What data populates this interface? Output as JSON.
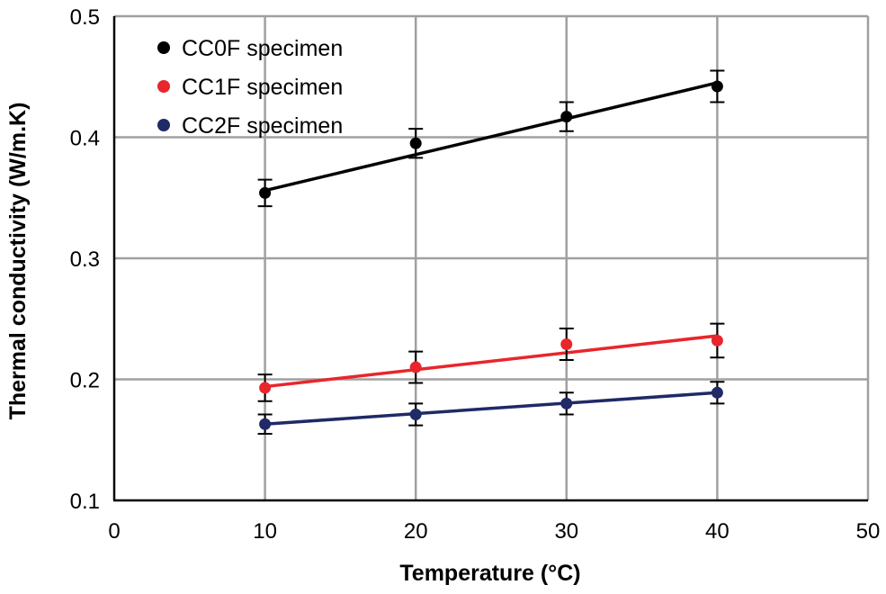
{
  "chart_data": {
    "type": "scatter",
    "xlabel": "Temperature (°C)",
    "ylabel": "Thermal conductivity (W/m.K)",
    "xlim": [
      0,
      50
    ],
    "ylim": [
      0.1,
      0.5
    ],
    "x_ticks": [
      "0",
      "10",
      "20",
      "30",
      "40",
      "50"
    ],
    "y_ticks": [
      "0.1",
      "0.2",
      "0.3",
      "0.4",
      "0.5"
    ],
    "grid": true,
    "legend_position": "top-left",
    "trendlines": "linear",
    "series": [
      {
        "name": "CC0F specimen",
        "color": "#000000",
        "x": [
          10,
          20,
          30,
          40
        ],
        "y": [
          0.354,
          0.395,
          0.417,
          0.442
        ],
        "error": [
          0.011,
          0.012,
          0.012,
          0.013
        ],
        "trend": [
          0.356,
          0.445
        ]
      },
      {
        "name": "CC1F specimen",
        "color": "#e8262b",
        "x": [
          10,
          20,
          30,
          40
        ],
        "y": [
          0.193,
          0.21,
          0.229,
          0.232
        ],
        "error": [
          0.011,
          0.013,
          0.013,
          0.014
        ],
        "trend": [
          0.194,
          0.236
        ]
      },
      {
        "name": "CC2F specimen",
        "color": "#1f2a66",
        "x": [
          10,
          20,
          30,
          40
        ],
        "y": [
          0.163,
          0.171,
          0.18,
          0.189
        ],
        "error": [
          0.008,
          0.009,
          0.009,
          0.009
        ],
        "trend": [
          0.163,
          0.189
        ]
      }
    ]
  }
}
